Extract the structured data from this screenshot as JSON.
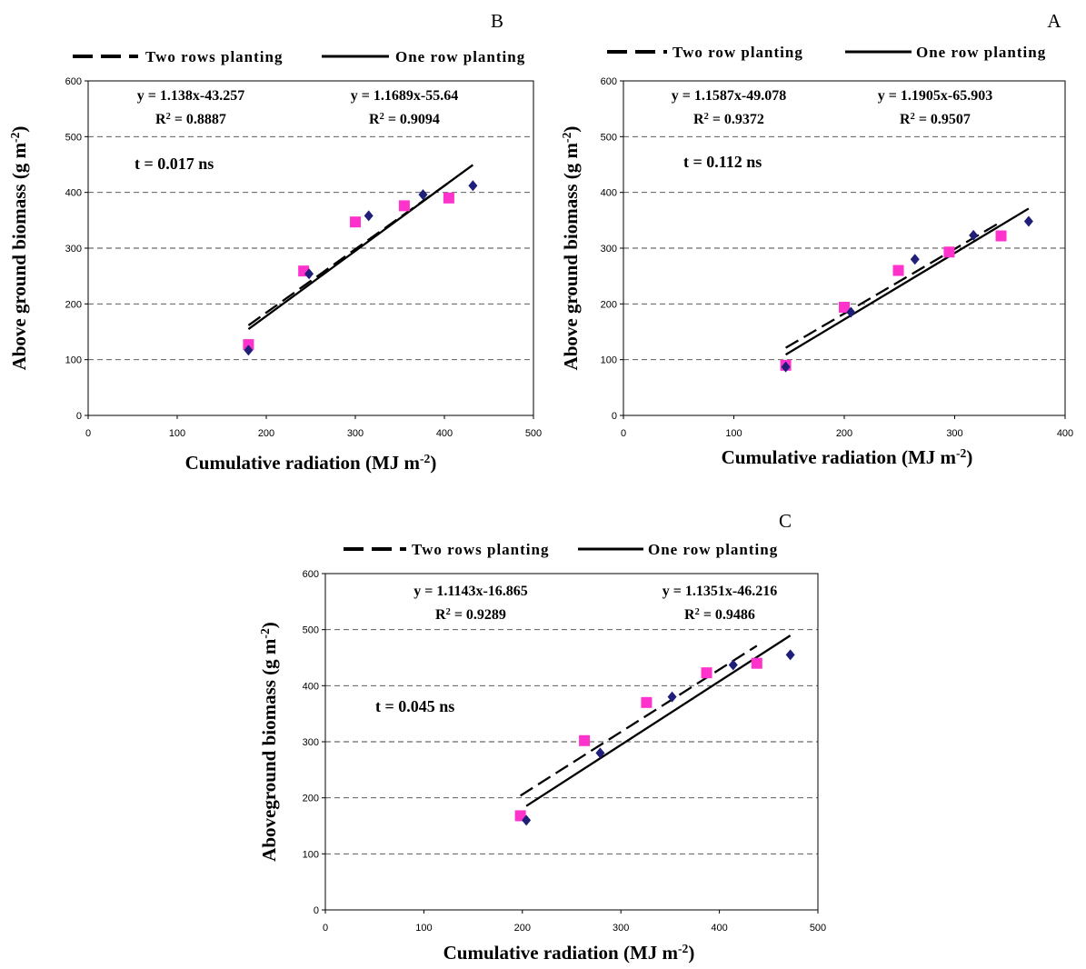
{
  "chart_data": [
    {
      "id": "B",
      "type": "scatter",
      "panel_label": "B",
      "xlabel": "Cumulative radiation (MJ m",
      "xlabel_sup": "-2",
      "xlabel_end": ")",
      "ylabel": "Above ground biomass (g m",
      "ylabel_sup": "-2",
      "ylabel_end": ")",
      "xlim": [
        0,
        500
      ],
      "ylim": [
        0,
        600
      ],
      "xticks": [
        0,
        100,
        200,
        300,
        400,
        500
      ],
      "yticks": [
        0,
        100,
        200,
        300,
        400,
        500,
        600
      ],
      "grid": "horizontal dashed",
      "legend_position": "top",
      "legend": [
        {
          "name": "Two rows planting",
          "style": "dashed"
        },
        {
          "name": "One row planting",
          "style": "solid"
        }
      ],
      "equations": [
        {
          "text": "y = 1.138x-43.257",
          "r2_prefix": "R",
          "r2_sup": "2",
          "r2_value": " = 0.8887",
          "series": "Two rows planting"
        },
        {
          "text": "y = 1.1689x-55.64",
          "r2_prefix": "R",
          "r2_sup": "2",
          "r2_value": " = 0.9094",
          "series": "One row planting"
        }
      ],
      "t_test": "t = 0.017 ns",
      "series": [
        {
          "name": "Two rows planting",
          "marker": "square",
          "color": "#ff33cc",
          "points": [
            [
              180,
              127
            ],
            [
              242,
              259
            ],
            [
              300,
              347
            ],
            [
              355,
              376
            ],
            [
              405,
              390
            ]
          ],
          "fit": {
            "slope": 1.138,
            "intercept": -43.257,
            "x_range": [
              180,
              405
            ]
          }
        },
        {
          "name": "One row planting",
          "marker": "diamond",
          "color": "#1f1f7a",
          "points": [
            [
              180,
              117
            ],
            [
              248,
              254
            ],
            [
              315,
              358
            ],
            [
              376,
              396
            ],
            [
              432,
              412
            ]
          ],
          "fit": {
            "slope": 1.1689,
            "intercept": -55.64,
            "x_range": [
              180,
              432
            ]
          }
        }
      ]
    },
    {
      "id": "A",
      "type": "scatter",
      "panel_label": "A",
      "xlabel": "Cumulative radiation (MJ m",
      "xlabel_sup": "-2",
      "xlabel_end": ")",
      "ylabel": "Above ground biomass (g m",
      "ylabel_sup": "-2",
      "ylabel_end": ")",
      "xlim": [
        0,
        400
      ],
      "ylim": [
        0,
        600
      ],
      "xticks": [
        0,
        100,
        200,
        300,
        400
      ],
      "yticks": [
        0,
        100,
        200,
        300,
        400,
        500,
        600
      ],
      "grid": "horizontal dashed",
      "legend_position": "top",
      "legend": [
        {
          "name": "Two row planting",
          "style": "dashed"
        },
        {
          "name": "One row planting",
          "style": "solid"
        }
      ],
      "equations": [
        {
          "text": "y = 1.1587x-49.078",
          "r2_prefix": "R",
          "r2_sup": "2",
          "r2_value": " = 0.9372",
          "series": "Two row planting"
        },
        {
          "text": "y = 1.1905x-65.903",
          "r2_prefix": "R",
          "r2_sup": "2",
          "r2_value": " = 0.9507",
          "series": "One row planting"
        }
      ],
      "t_test": "t = 0.112 ns",
      "series": [
        {
          "name": "Two row planting",
          "marker": "square",
          "color": "#ff33cc",
          "points": [
            [
              147,
              90
            ],
            [
              200,
              194
            ],
            [
              249,
              260
            ],
            [
              295,
              293
            ],
            [
              342,
              322
            ]
          ],
          "fit": {
            "slope": 1.1587,
            "intercept": -49.078,
            "x_range": [
              147,
              342
            ]
          }
        },
        {
          "name": "One row planting",
          "marker": "diamond",
          "color": "#1f1f7a",
          "points": [
            [
              147,
              87
            ],
            [
              206,
              185
            ],
            [
              264,
              280
            ],
            [
              317,
              323
            ],
            [
              367,
              348
            ]
          ],
          "fit": {
            "slope": 1.1905,
            "intercept": -65.903,
            "x_range": [
              147,
              367
            ]
          }
        }
      ]
    },
    {
      "id": "C",
      "type": "scatter",
      "panel_label": "C",
      "xlabel": "Cumulative radiation (MJ m",
      "xlabel_sup": "-2",
      "xlabel_end": ")",
      "ylabel": "Aboveground biomass (g m",
      "ylabel_sup": "-2",
      "ylabel_end": ")",
      "xlim": [
        0,
        500
      ],
      "ylim": [
        0,
        600
      ],
      "xticks": [
        0,
        100,
        200,
        300,
        400,
        500
      ],
      "yticks": [
        0,
        100,
        200,
        300,
        400,
        500,
        600
      ],
      "grid": "horizontal dashed",
      "legend_position": "top",
      "legend": [
        {
          "name": "Two rows planting",
          "style": "dashed"
        },
        {
          "name": "One row planting",
          "style": "solid"
        }
      ],
      "equations": [
        {
          "text": "y = 1.1143x-16.865",
          "r2_prefix": "R",
          "r2_sup": "2",
          "r2_value": " = 0.9289",
          "series": "Two rows planting"
        },
        {
          "text": "y = 1.1351x-46.216",
          "r2_prefix": "R",
          "r2_sup": "2",
          "r2_value": " = 0.9486",
          "series": "One row planting"
        }
      ],
      "t_test": "t = 0.045 ns",
      "series": [
        {
          "name": "Two rows planting",
          "marker": "square",
          "color": "#ff33cc",
          "points": [
            [
              198,
              168
            ],
            [
              263,
              302
            ],
            [
              326,
              370
            ],
            [
              387,
              423
            ],
            [
              438,
              440
            ]
          ],
          "fit": {
            "slope": 1.1143,
            "intercept": -16.865,
            "x_range": [
              198,
              438
            ]
          }
        },
        {
          "name": "One row planting",
          "marker": "diamond",
          "color": "#1f1f7a",
          "points": [
            [
              204,
              160
            ],
            [
              279,
              280
            ],
            [
              352,
              380
            ],
            [
              414,
              437
            ],
            [
              472,
              455
            ]
          ],
          "fit": {
            "slope": 1.1351,
            "intercept": -46.216,
            "x_range": [
              204,
              472
            ]
          }
        }
      ]
    }
  ]
}
